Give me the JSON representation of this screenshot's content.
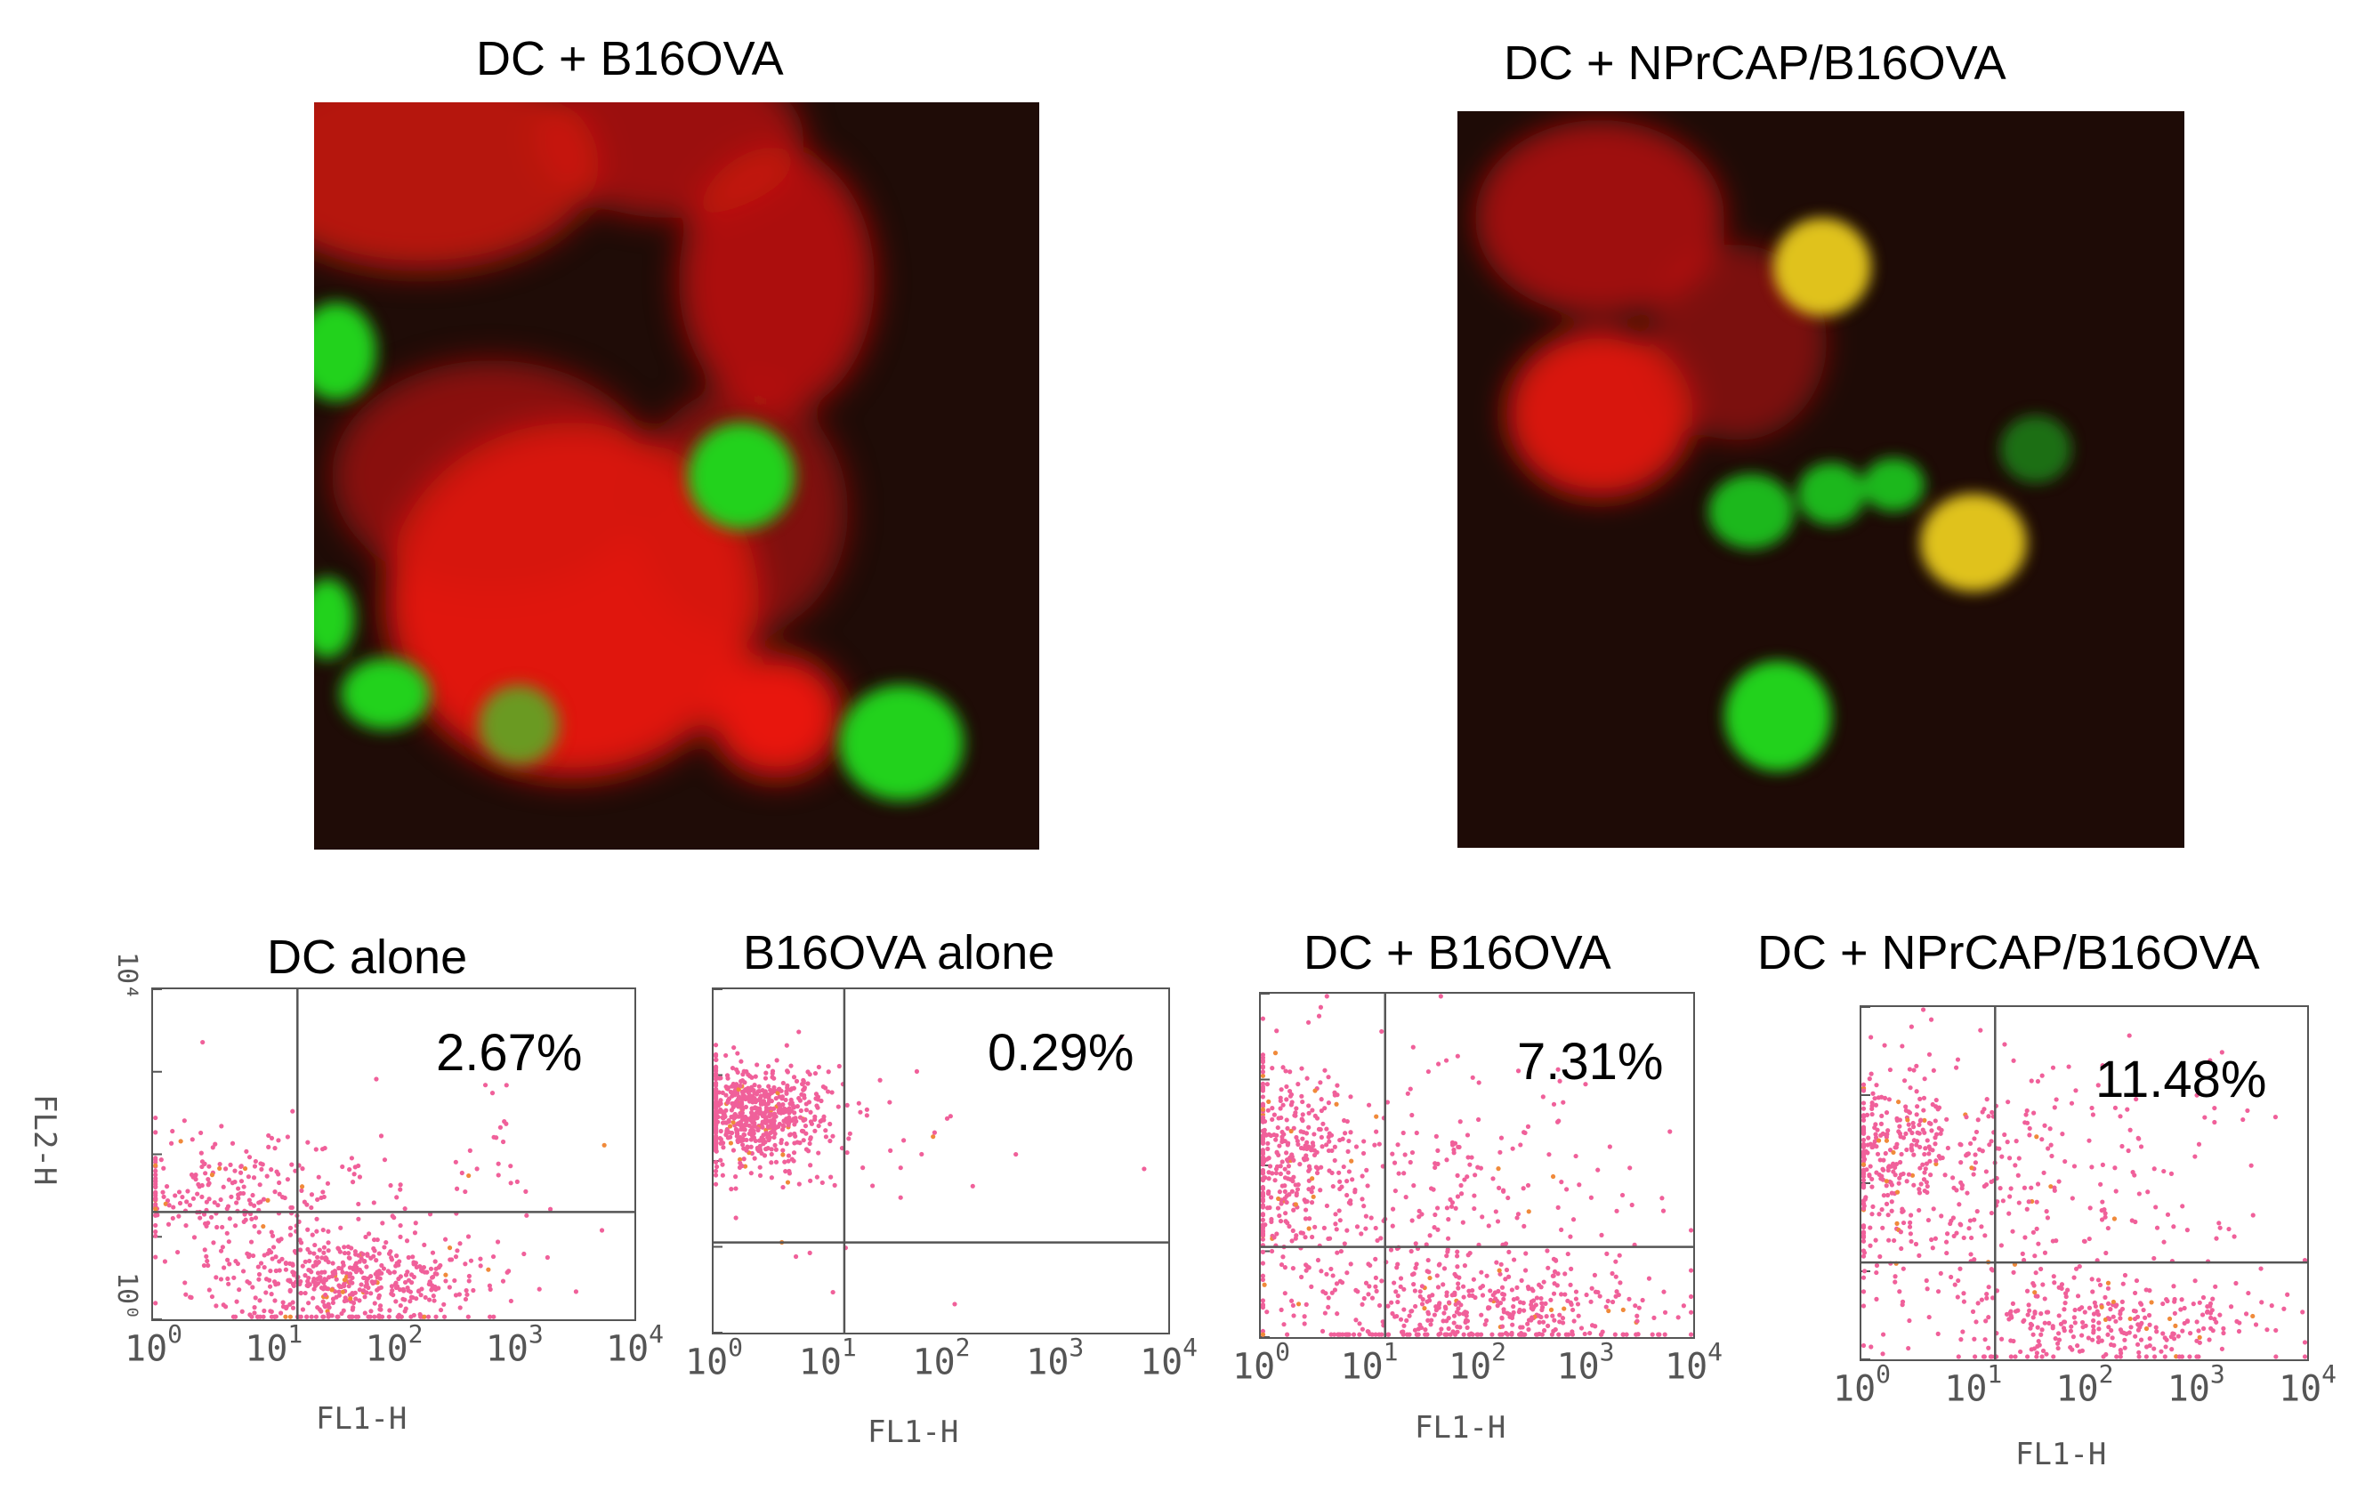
{
  "micrographs": [
    {
      "title": "DC + B16OVA"
    },
    {
      "title": "DC + NPrCAP/B16OVA"
    }
  ],
  "chart_data": [
    {
      "type": "scatter",
      "title": "DC alone",
      "xlabel": "FL1-H",
      "ylabel": "FL2-H",
      "x_scale": "log",
      "y_scale": "log",
      "xlim": [
        1,
        10000
      ],
      "ylim": [
        1,
        10000
      ],
      "x_ticks": [
        "10",
        "10",
        "10",
        "10",
        "10"
      ],
      "x_tick_exp": [
        "0",
        "1",
        "2",
        "3",
        "4"
      ],
      "y_ticks": [
        "10⁰",
        "10⁴"
      ],
      "annotation": "2.67%",
      "point_color": "#f0609a"
    },
    {
      "type": "scatter",
      "title": "B16OVA alone",
      "xlabel": "FL1-H",
      "ylabel": "",
      "x_scale": "log",
      "y_scale": "log",
      "xlim": [
        1,
        10000
      ],
      "ylim": [
        1,
        10000
      ],
      "x_ticks": [
        "10",
        "10",
        "10",
        "10",
        "10"
      ],
      "x_tick_exp": [
        "0",
        "1",
        "2",
        "3",
        "4"
      ],
      "annotation": "0.29%",
      "point_color": "#f0609a"
    },
    {
      "type": "scatter",
      "title": "DC + B16OVA",
      "xlabel": "FL1-H",
      "ylabel": "",
      "x_scale": "log",
      "y_scale": "log",
      "xlim": [
        1,
        10000
      ],
      "ylim": [
        1,
        10000
      ],
      "x_ticks": [
        "10",
        "10",
        "10",
        "10",
        "10"
      ],
      "x_tick_exp": [
        "0",
        "1",
        "2",
        "3",
        "4"
      ],
      "annotation": "7.31%",
      "point_color": "#f0609a"
    },
    {
      "type": "scatter",
      "title": "DC + NPrCAP/B16OVA",
      "xlabel": "FL1-H",
      "ylabel": "",
      "x_scale": "log",
      "y_scale": "log",
      "xlim": [
        1,
        10000
      ],
      "ylim": [
        1,
        10000
      ],
      "x_ticks": [
        "10",
        "10",
        "10",
        "10",
        "10"
      ],
      "x_tick_exp": [
        "0",
        "1",
        "2",
        "3",
        "4"
      ],
      "annotation": "11.48%",
      "point_color": "#f0609a"
    }
  ]
}
